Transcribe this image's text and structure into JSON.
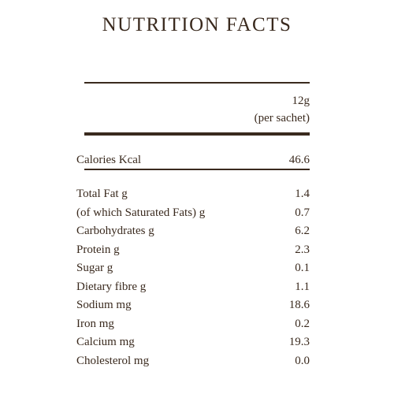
{
  "title": "NUTRITION FACTS",
  "header": {
    "serving": "12g",
    "unit": "(per sachet)"
  },
  "calories": {
    "label": "Calories Kcal",
    "value": "46.6"
  },
  "rows": [
    [
      "Total Fat g",
      "1.4"
    ],
    [
      "(of which Saturated Fats) g",
      "0.7"
    ],
    [
      "Carbohydrates g",
      "6.2"
    ],
    [
      "Protein g",
      "2.3"
    ],
    [
      "Sugar g",
      "0.1"
    ],
    [
      "Dietary fibre g",
      "1.1"
    ],
    [
      "Sodium mg",
      "18.6"
    ],
    [
      "Iron mg",
      "0.2"
    ],
    [
      "Calcium mg",
      "19.3"
    ],
    [
      "Cholesterol mg",
      "0.0"
    ]
  ]
}
